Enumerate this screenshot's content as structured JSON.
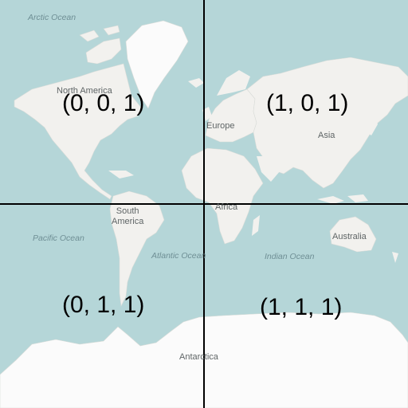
{
  "colors": {
    "water": "#b5d6d8",
    "land": "#f2f1ee",
    "ice": "#fbfbfb",
    "grid": "#000000"
  },
  "labels": {
    "arctic_ocean": "Arctic Ocean",
    "north_america": "North America",
    "europe": "Europe",
    "asia": "Asia",
    "africa": "Africa",
    "south_america": "South\nAmerica",
    "pacific_ocean": "Pacific Ocean",
    "atlantic_ocean": "Atlantic Ocean",
    "indian_ocean": "Indian Ocean",
    "australia": "Australia",
    "antarctica": "Antarctica"
  },
  "tiles": [
    {
      "id": "(0, 0, 1)"
    },
    {
      "id": "(1, 0, 1)"
    },
    {
      "id": "(0, 1, 1)"
    },
    {
      "id": "(1, 1, 1)"
    }
  ]
}
